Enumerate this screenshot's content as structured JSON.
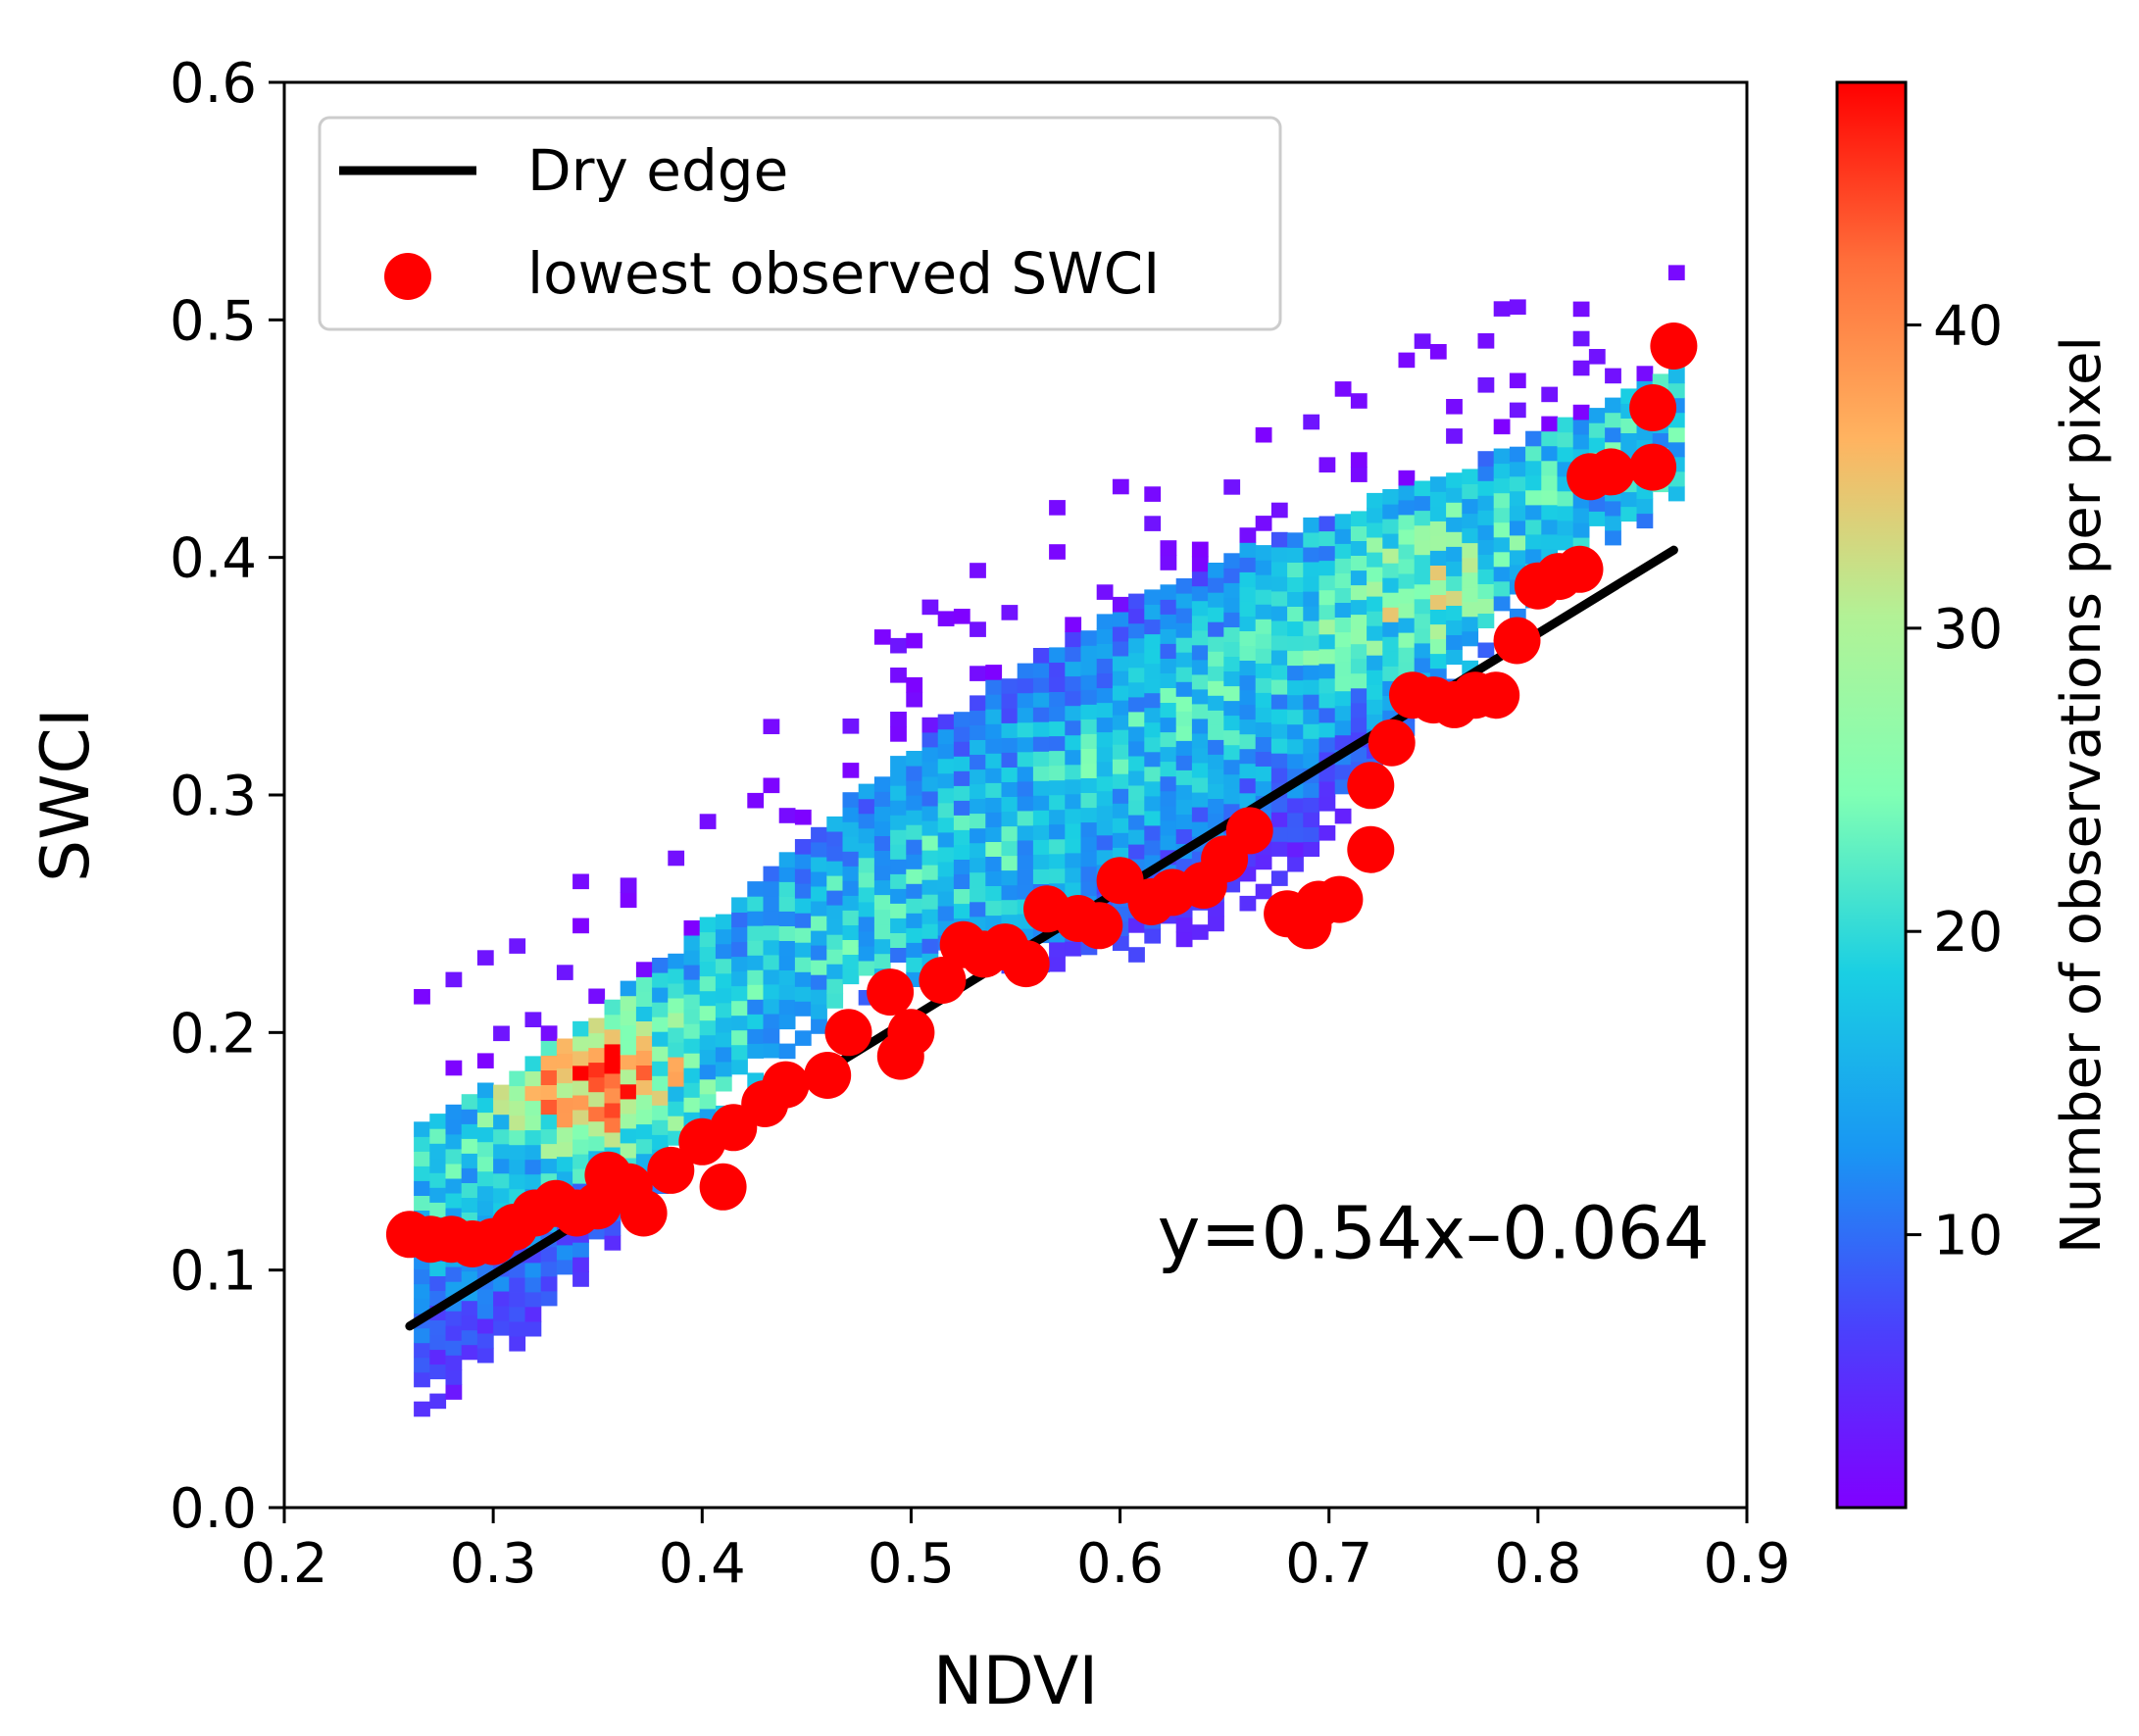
{
  "chart_data": {
    "type": "scatter",
    "title": "",
    "xlabel": "NDVI",
    "ylabel": "SWCI",
    "xlim": [
      0.2,
      0.9
    ],
    "ylim": [
      0.0,
      0.6
    ],
    "xticks": [
      "0.2",
      "0.3",
      "0.4",
      "0.5",
      "0.6",
      "0.7",
      "0.8",
      "0.9"
    ],
    "yticks": [
      "0.0",
      "0.1",
      "0.2",
      "0.3",
      "0.4",
      "0.5",
      "0.6"
    ],
    "grid": false,
    "legend_position": "top-left",
    "background_density": {
      "kind": "2d-histogram",
      "colormap": "rainbow",
      "range": [
        1,
        48
      ],
      "colorbar_label": "Number of observations per pixel",
      "colorbar_ticks": [
        "10",
        "20",
        "30",
        "40"
      ]
    },
    "series": [
      {
        "name": "Dry edge",
        "type": "line",
        "color": "#000000",
        "points": [
          [
            0.26,
            0.0764
          ],
          [
            0.865,
            0.4031
          ]
        ]
      },
      {
        "name": "lowest observed SWCI",
        "type": "scatter",
        "color": "#ff0000",
        "points": [
          [
            0.26,
            0.115
          ],
          [
            0.27,
            0.113
          ],
          [
            0.28,
            0.113
          ],
          [
            0.29,
            0.111
          ],
          [
            0.3,
            0.112
          ],
          [
            0.31,
            0.118
          ],
          [
            0.32,
            0.124
          ],
          [
            0.33,
            0.128
          ],
          [
            0.34,
            0.124
          ],
          [
            0.35,
            0.127
          ],
          [
            0.355,
            0.14
          ],
          [
            0.365,
            0.135
          ],
          [
            0.372,
            0.124
          ],
          [
            0.385,
            0.142
          ],
          [
            0.4,
            0.154
          ],
          [
            0.41,
            0.135
          ],
          [
            0.415,
            0.16
          ],
          [
            0.43,
            0.17
          ],
          [
            0.44,
            0.178
          ],
          [
            0.46,
            0.182
          ],
          [
            0.47,
            0.2
          ],
          [
            0.49,
            0.217
          ],
          [
            0.5,
            0.2
          ],
          [
            0.495,
            0.19
          ],
          [
            0.515,
            0.222
          ],
          [
            0.525,
            0.237
          ],
          [
            0.535,
            0.233
          ],
          [
            0.545,
            0.236
          ],
          [
            0.555,
            0.229
          ],
          [
            0.565,
            0.252
          ],
          [
            0.58,
            0.248
          ],
          [
            0.59,
            0.245
          ],
          [
            0.6,
            0.264
          ],
          [
            0.615,
            0.255
          ],
          [
            0.625,
            0.259
          ],
          [
            0.64,
            0.262
          ],
          [
            0.65,
            0.273
          ],
          [
            0.662,
            0.285
          ],
          [
            0.68,
            0.25
          ],
          [
            0.69,
            0.245
          ],
          [
            0.695,
            0.254
          ],
          [
            0.705,
            0.256
          ],
          [
            0.72,
            0.277
          ],
          [
            0.72,
            0.304
          ],
          [
            0.73,
            0.322
          ],
          [
            0.74,
            0.342
          ],
          [
            0.75,
            0.34
          ],
          [
            0.76,
            0.338
          ],
          [
            0.77,
            0.342
          ],
          [
            0.78,
            0.342
          ],
          [
            0.79,
            0.365
          ],
          [
            0.8,
            0.388
          ],
          [
            0.81,
            0.392
          ],
          [
            0.82,
            0.395
          ],
          [
            0.825,
            0.434
          ],
          [
            0.835,
            0.436
          ],
          [
            0.855,
            0.438
          ],
          [
            0.855,
            0.463
          ],
          [
            0.865,
            0.489
          ]
        ]
      }
    ],
    "annotations": [
      {
        "text": "y=0.54x–0.064",
        "x": 0.75,
        "y": 0.105
      }
    ]
  }
}
